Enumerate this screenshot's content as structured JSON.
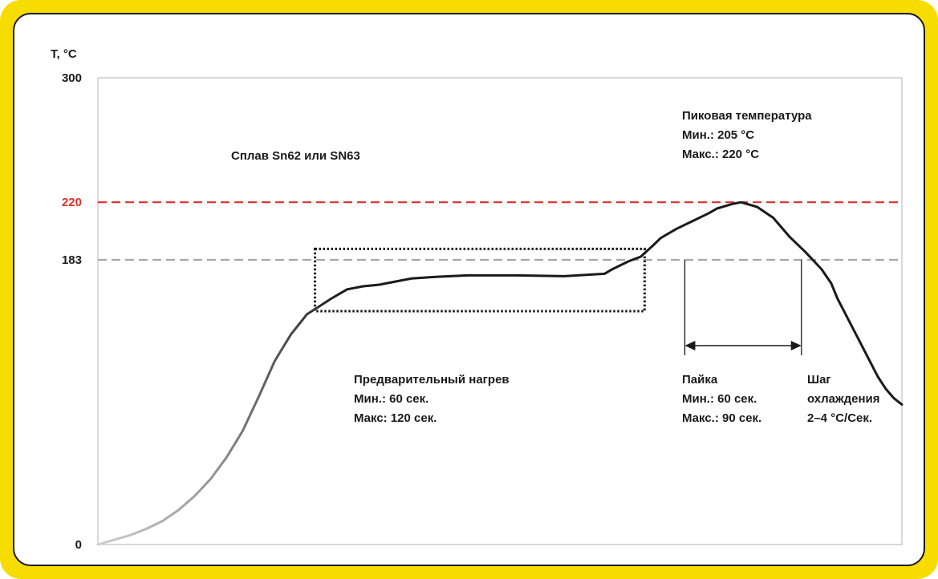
{
  "chart_data": {
    "type": "line",
    "title": "Сплав Sn62 или SN63",
    "xlabel": "",
    "ylabel": "T, °C",
    "ylim": [
      0,
      300
    ],
    "y_ticks": [
      {
        "value": 0,
        "label": "0",
        "color": "#1a1a1a"
      },
      {
        "value": 183,
        "label": "183",
        "color": "#1a1a1a"
      },
      {
        "value": 220,
        "label": "220",
        "color": "#d9322b"
      },
      {
        "value": 300,
        "label": "300",
        "color": "#1a1a1a"
      }
    ],
    "reference_lines": [
      {
        "value": 220,
        "color": "#d9322b",
        "style": "dashed"
      },
      {
        "value": 183,
        "color": "#a6a6a6",
        "style": "dashed"
      }
    ],
    "series": [
      {
        "x": [
          0,
          2,
          4,
          6,
          8,
          10,
          12,
          14,
          16,
          18,
          20,
          22,
          24,
          26,
          27.5,
          29,
          31,
          33,
          35,
          37,
          39,
          42,
          46,
          52,
          58,
          63,
          64,
          66,
          67.5,
          69,
          70,
          72,
          74,
          76,
          77,
          79,
          80,
          82,
          84,
          86,
          88,
          90,
          91.2,
          92,
          93,
          94,
          95,
          96,
          97,
          98,
          99,
          100
        ],
        "y": [
          0,
          3,
          6,
          10,
          15,
          22,
          31,
          42,
          56,
          73,
          95,
          118,
          135,
          148,
          153,
          158,
          164,
          166,
          167,
          169,
          171,
          172,
          173,
          173,
          172.5,
          174,
          177,
          182,
          185,
          192,
          197,
          203,
          208,
          213,
          216,
          219,
          220,
          217,
          210,
          198,
          188,
          177,
          168,
          158,
          148,
          138,
          128,
          118,
          108,
          100,
          94,
          90
        ]
      }
    ],
    "annotations": {
      "peak": {
        "title": "Пиковая температура",
        "min": "Мин.: 205 °C",
        "max": "Макс.: 220 °C"
      },
      "preheat": {
        "title": "Предварительный нагрев",
        "min": "Мин.: 60 сек.",
        "max": "Макс: 120 сек."
      },
      "soldering": {
        "title": "Пайка",
        "min": "Мин.: 60 сек.",
        "max": "Макс.: 90 сек."
      },
      "cooling": {
        "line1": "Шаг",
        "line2": "охлаждения",
        "line3": "2–4 °C/Сек."
      }
    },
    "preheat_box": {
      "x_start": 27,
      "x_end": 68,
      "y_low": 150,
      "y_high": 190
    },
    "solder_interval": {
      "x_start": 73,
      "x_end": 87.5
    },
    "legend": "none",
    "grid": false
  }
}
